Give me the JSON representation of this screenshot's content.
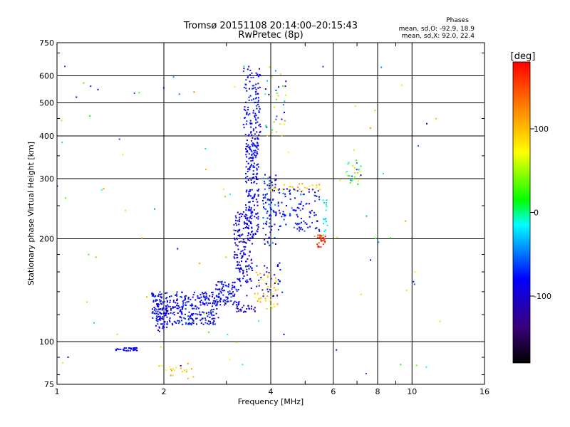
{
  "chart_data": {
    "type": "scatter",
    "title": "Tromsø 20151108 20:14:00–20:15:43",
    "subtitle": "RwPretec (8p)",
    "xlabel": "Frequency [MHz]",
    "ylabel": "Stationary phase Virtual Height [km]",
    "x_scale": "log",
    "y_scale": "log",
    "xlim": [
      1,
      16
    ],
    "ylim": [
      75,
      750
    ],
    "x_ticks": [
      1,
      2,
      4,
      6,
      8,
      10,
      16
    ],
    "x_minor_ticks": [
      3,
      5,
      7,
      9
    ],
    "y_ticks": [
      75,
      100,
      200,
      300,
      400,
      500,
      600,
      750
    ],
    "grid": true,
    "phase_info": {
      "title": "Phases",
      "line_o": "mean, sd,O: -92.9, 18.9",
      "line_x": "mean, sd,X:  92.0, 22.4"
    },
    "colorbar": {
      "label": "[deg]",
      "range": [
        -180,
        180
      ],
      "ticks": [
        100,
        0,
        -100
      ],
      "colors": [
        "#000000",
        "#3a007a",
        "#0000ff",
        "#00ffff",
        "#00ff00",
        "#ffff00",
        "#ff8000",
        "#ff0000"
      ]
    },
    "clusters": [
      {
        "f": [
          1.45,
          1.68
        ],
        "h": [
          94,
          96
        ],
        "phase": [
          -95,
          -80
        ],
        "n": 35
      },
      {
        "f": [
          1.85,
          2.85
        ],
        "h": [
          112,
          140
        ],
        "phase": [
          -110,
          -60
        ],
        "n": 330
      },
      {
        "f": [
          1.88,
          2.05
        ],
        "h": [
          105,
          130
        ],
        "phase": [
          -100,
          -80
        ],
        "n": 40
      },
      {
        "f": [
          2.8,
          3.3
        ],
        "h": [
          128,
          150
        ],
        "phase": [
          -110,
          -60
        ],
        "n": 90
      },
      {
        "f": [
          3.2,
          3.65
        ],
        "h": [
          122,
          128
        ],
        "phase": [
          -110,
          -90
        ],
        "n": 25
      },
      {
        "f": [
          3.15,
          3.55
        ],
        "h": [
          150,
          240
        ],
        "phase": [
          -105,
          -80
        ],
        "n": 140
      },
      {
        "f": [
          3.4,
          3.7
        ],
        "h": [
          200,
          280
        ],
        "phase": [
          -110,
          -70
        ],
        "n": 90
      },
      {
        "f": [
          3.4,
          3.7
        ],
        "h": [
          290,
          400
        ],
        "phase": [
          -110,
          -60
        ],
        "n": 110
      },
      {
        "f": [
          3.35,
          3.75
        ],
        "h": [
          400,
          640
        ],
        "phase": [
          -110,
          -60
        ],
        "n": 110
      },
      {
        "f": [
          3.8,
          4.15
        ],
        "h": [
          190,
          310
        ],
        "phase": [
          -110,
          -40
        ],
        "n": 90
      },
      {
        "f": [
          4.2,
          5.5
        ],
        "h": [
          210,
          280
        ],
        "phase": [
          -110,
          -50
        ],
        "n": 110
      },
      {
        "f": [
          4.0,
          5.5
        ],
        "h": [
          275,
          290
        ],
        "phase": [
          60,
          120
        ],
        "n": 25
      },
      {
        "f": [
          5.4,
          5.7
        ],
        "h": [
          188,
          205
        ],
        "phase": [
          150,
          175
        ],
        "n": 30
      },
      {
        "f": [
          5.6,
          5.8
        ],
        "h": [
          205,
          260
        ],
        "phase": [
          -30,
          0
        ],
        "n": 18
      },
      {
        "f": [
          3.6,
          4.2
        ],
        "h": [
          125,
          160
        ],
        "phase": [
          60,
          120
        ],
        "n": 45
      },
      {
        "f": [
          3.4,
          4.4
        ],
        "h": [
          135,
          170
        ],
        "phase": [
          -110,
          -70
        ],
        "n": 40
      },
      {
        "f": [
          6.5,
          7.2
        ],
        "h": [
          280,
          340
        ],
        "phase": [
          -80,
          110
        ],
        "n": 28
      },
      {
        "f": [
          3.85,
          4.5
        ],
        "h": [
          400,
          640
        ],
        "phase": [
          -110,
          120
        ],
        "n": 35
      },
      {
        "f": [
          1.9,
          2.5
        ],
        "h": [
          78,
          85
        ],
        "phase": [
          60,
          120
        ],
        "n": 18
      },
      {
        "f": [
          1.0,
          12.0
        ],
        "h": [
          80,
          650
        ],
        "phase": [
          -110,
          130
        ],
        "n": 90
      }
    ]
  }
}
